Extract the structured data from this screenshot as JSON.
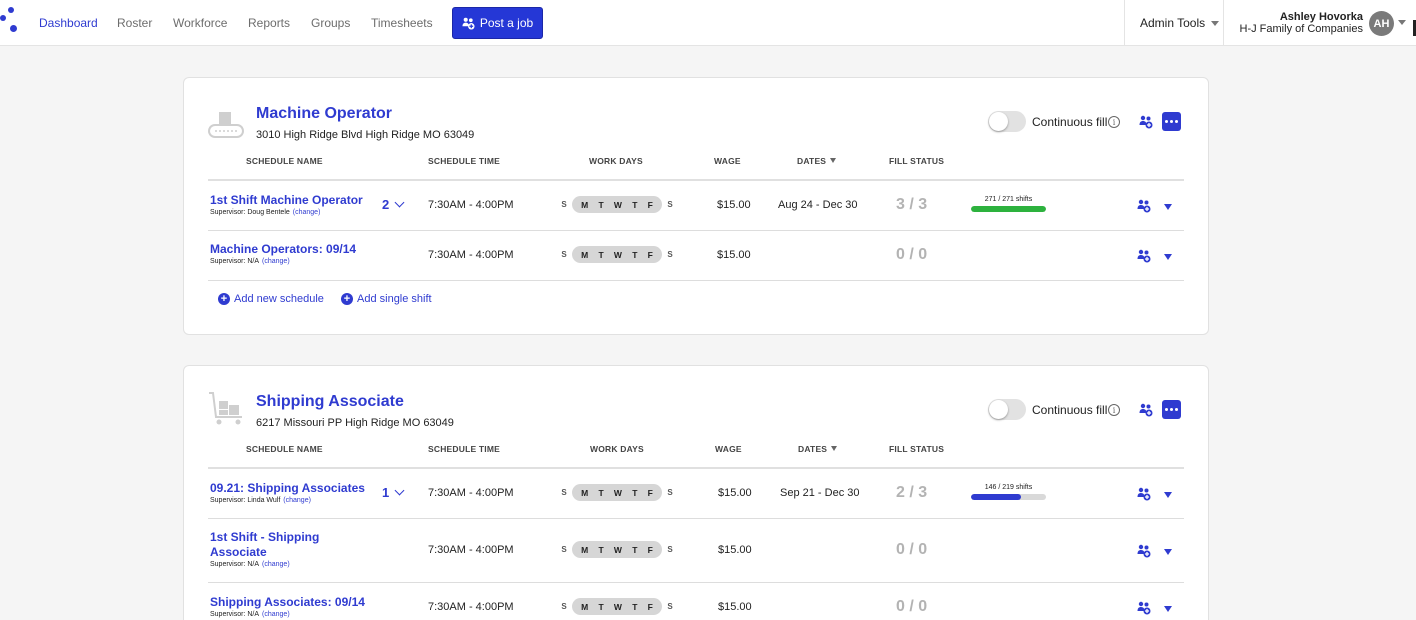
{
  "nav": {
    "items": [
      "Dashboard",
      "Roster",
      "Workforce",
      "Reports",
      "Groups",
      "Timesheets"
    ],
    "post_job_label": "Post a job",
    "admin_tools_label": "Admin Tools",
    "user_name": "Ashley Hovorka",
    "user_company": "H-J Family of Companies",
    "user_initials": "AH"
  },
  "colors": {
    "accent": "#2f3bd0",
    "fill_complete": "#2db23e",
    "fill_partial": "#2f3bd0",
    "bar_track": "#d9d9d9"
  },
  "labels": {
    "continuous_fill": "Continuous fill",
    "add_new_schedule": "Add new schedule",
    "add_single_shift": "Add single shift",
    "change": "(change)"
  },
  "columns": [
    "SCHEDULE NAME",
    "SCHEDULE TIME",
    "WORK DAYS",
    "WAGE",
    "DATES",
    "FILL STATUS"
  ],
  "days": {
    "weekend": [
      "S",
      "S"
    ],
    "weekdays": [
      "M",
      "T",
      "W",
      "T",
      "F"
    ]
  },
  "jobs": [
    {
      "title": "Machine Operator",
      "address": "3010 High Ridge Blvd High Ridge MO 63049",
      "icon": "conveyor-icon",
      "continuous_fill": false,
      "schedules": [
        {
          "name": "1st Shift Machine Operator",
          "supervisor": "Supervisor: Doug Bentele",
          "count": "2",
          "time": "7:30AM - 4:00PM",
          "wage": "$15.00",
          "dates": "Aug 24 - Dec 30",
          "fill": "3 / 3",
          "shifts_text": "271 / 271 shifts",
          "shifts_filled": 271,
          "shifts_total": 271
        },
        {
          "name": "Machine Operators: 09/14",
          "supervisor": "Supervisor: N/A",
          "time": "7:30AM - 4:00PM",
          "wage": "$15.00",
          "fill": "0 / 0"
        }
      ]
    },
    {
      "title": "Shipping Associate",
      "address": "6217 Missouri PP High Ridge MO 63049",
      "icon": "cart-icon",
      "continuous_fill": false,
      "schedules": [
        {
          "name": "09.21: Shipping Associates",
          "supervisor": "Supervisor: Linda Wulf",
          "count": "1",
          "time": "7:30AM - 4:00PM",
          "wage": "$15.00",
          "dates": "Sep 21 - Dec 30",
          "fill": "2 / 3",
          "shifts_text": "146 / 219 shifts",
          "shifts_filled": 146,
          "shifts_total": 219
        },
        {
          "name": "1st Shift - Shipping Associate",
          "supervisor": "Supervisor: N/A",
          "time": "7:30AM - 4:00PM",
          "wage": "$15.00",
          "fill": "0 / 0"
        },
        {
          "name": "Shipping Associates: 09/14",
          "supervisor": "Supervisor: N/A",
          "time": "7:30AM - 4:00PM",
          "wage": "$15.00",
          "fill": "0 / 0"
        }
      ]
    }
  ]
}
